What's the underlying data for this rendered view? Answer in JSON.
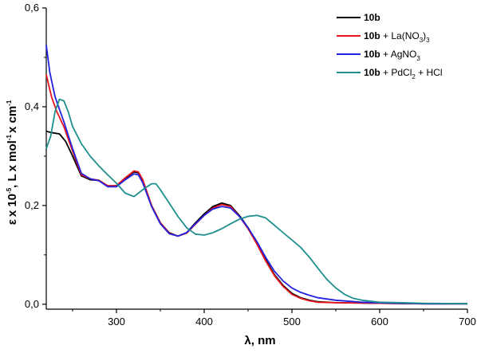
{
  "chart_data": {
    "type": "line",
    "title": "",
    "xlabel": "λ, nm",
    "ylabel": {
      "p1": "ε",
      "p2": "x 10",
      "p2_sup": "-5",
      "p3": ", L",
      "p4": "x mol",
      "p4_sup": "-1",
      "p5": "x cm",
      "p5_sup": "-1"
    },
    "xlim": [
      220,
      700
    ],
    "ylim": [
      -0.01,
      0.6
    ],
    "x_ticks": [
      300,
      400,
      500,
      600,
      700
    ],
    "y_ticks": [
      0.0,
      0.2,
      0.4,
      0.6
    ],
    "x_tick_labels": [
      "300",
      "400",
      "500",
      "600",
      "700"
    ],
    "y_tick_labels": [
      "0,0",
      "0,2",
      "0,4",
      "0,6"
    ],
    "grid": false,
    "legend_position": "top-right",
    "series": [
      {
        "name": "10b",
        "legend": {
          "bold": "10b",
          "rest": "",
          "sub": "",
          "tail": ""
        },
        "color": "#000000",
        "points": [
          [
            220,
            0.35
          ],
          [
            228,
            0.347
          ],
          [
            235,
            0.345
          ],
          [
            242,
            0.33
          ],
          [
            250,
            0.3
          ],
          [
            260,
            0.26
          ],
          [
            270,
            0.252
          ],
          [
            280,
            0.251
          ],
          [
            290,
            0.24
          ],
          [
            300,
            0.24
          ],
          [
            310,
            0.255
          ],
          [
            320,
            0.268
          ],
          [
            325,
            0.266
          ],
          [
            330,
            0.25
          ],
          [
            340,
            0.2
          ],
          [
            350,
            0.165
          ],
          [
            360,
            0.145
          ],
          [
            370,
            0.138
          ],
          [
            380,
            0.145
          ],
          [
            390,
            0.165
          ],
          [
            400,
            0.183
          ],
          [
            410,
            0.198
          ],
          [
            420,
            0.205
          ],
          [
            430,
            0.2
          ],
          [
            440,
            0.18
          ],
          [
            450,
            0.155
          ],
          [
            460,
            0.125
          ],
          [
            470,
            0.09
          ],
          [
            480,
            0.06
          ],
          [
            490,
            0.038
          ],
          [
            500,
            0.022
          ],
          [
            510,
            0.013
          ],
          [
            520,
            0.008
          ],
          [
            530,
            0.005
          ],
          [
            550,
            0.003
          ],
          [
            600,
            0.002
          ],
          [
            650,
            0.001
          ],
          [
            700,
            0.001
          ]
        ]
      },
      {
        "name": "10b + La(NO3)3",
        "legend": {
          "bold": "10b",
          "rest": " + La(NO",
          "sub": "3",
          "tail": ")",
          "sub2": "3"
        },
        "color": "#e8141c",
        "points": [
          [
            220,
            0.465
          ],
          [
            226,
            0.42
          ],
          [
            232,
            0.39
          ],
          [
            240,
            0.36
          ],
          [
            250,
            0.31
          ],
          [
            260,
            0.262
          ],
          [
            270,
            0.254
          ],
          [
            280,
            0.251
          ],
          [
            290,
            0.24
          ],
          [
            300,
            0.24
          ],
          [
            310,
            0.256
          ],
          [
            320,
            0.27
          ],
          [
            325,
            0.268
          ],
          [
            330,
            0.252
          ],
          [
            340,
            0.2
          ],
          [
            350,
            0.165
          ],
          [
            360,
            0.144
          ],
          [
            370,
            0.138
          ],
          [
            380,
            0.144
          ],
          [
            390,
            0.162
          ],
          [
            400,
            0.18
          ],
          [
            410,
            0.195
          ],
          [
            420,
            0.202
          ],
          [
            430,
            0.198
          ],
          [
            440,
            0.178
          ],
          [
            450,
            0.153
          ],
          [
            460,
            0.122
          ],
          [
            470,
            0.088
          ],
          [
            480,
            0.058
          ],
          [
            490,
            0.036
          ],
          [
            500,
            0.02
          ],
          [
            510,
            0.012
          ],
          [
            520,
            0.007
          ],
          [
            530,
            0.004
          ],
          [
            550,
            0.003
          ],
          [
            600,
            0.002
          ],
          [
            650,
            0.001
          ],
          [
            700,
            0.001
          ]
        ]
      },
      {
        "name": "10b + AgNO3",
        "legend": {
          "bold": "10b",
          "rest": " + AgNO",
          "sub": "3",
          "tail": "",
          "sub2": ""
        },
        "color": "#2222e0",
        "points": [
          [
            220,
            0.525
          ],
          [
            224,
            0.47
          ],
          [
            230,
            0.42
          ],
          [
            240,
            0.37
          ],
          [
            250,
            0.315
          ],
          [
            260,
            0.265
          ],
          [
            270,
            0.254
          ],
          [
            280,
            0.25
          ],
          [
            290,
            0.238
          ],
          [
            300,
            0.238
          ],
          [
            310,
            0.252
          ],
          [
            320,
            0.264
          ],
          [
            325,
            0.262
          ],
          [
            330,
            0.246
          ],
          [
            340,
            0.198
          ],
          [
            350,
            0.163
          ],
          [
            360,
            0.143
          ],
          [
            370,
            0.138
          ],
          [
            380,
            0.145
          ],
          [
            390,
            0.163
          ],
          [
            400,
            0.18
          ],
          [
            410,
            0.193
          ],
          [
            420,
            0.198
          ],
          [
            430,
            0.195
          ],
          [
            440,
            0.178
          ],
          [
            450,
            0.155
          ],
          [
            460,
            0.127
          ],
          [
            470,
            0.095
          ],
          [
            480,
            0.067
          ],
          [
            490,
            0.047
          ],
          [
            500,
            0.033
          ],
          [
            510,
            0.024
          ],
          [
            520,
            0.018
          ],
          [
            530,
            0.013
          ],
          [
            550,
            0.008
          ],
          [
            580,
            0.004
          ],
          [
            620,
            0.002
          ],
          [
            660,
            0.001
          ],
          [
            700,
            0.001
          ]
        ]
      },
      {
        "name": "10b + PdCl2 + HCl",
        "legend": {
          "bold": "10b",
          "rest": " + PdCl",
          "sub": "2",
          "tail": " + HCl",
          "sub2": ""
        },
        "color": "#1f8f8f",
        "points": [
          [
            220,
            0.315
          ],
          [
            225,
            0.34
          ],
          [
            230,
            0.39
          ],
          [
            235,
            0.415
          ],
          [
            240,
            0.412
          ],
          [
            245,
            0.39
          ],
          [
            250,
            0.36
          ],
          [
            260,
            0.325
          ],
          [
            270,
            0.3
          ],
          [
            280,
            0.28
          ],
          [
            290,
            0.262
          ],
          [
            300,
            0.245
          ],
          [
            310,
            0.225
          ],
          [
            320,
            0.218
          ],
          [
            330,
            0.232
          ],
          [
            340,
            0.244
          ],
          [
            345,
            0.244
          ],
          [
            350,
            0.232
          ],
          [
            360,
            0.205
          ],
          [
            370,
            0.178
          ],
          [
            380,
            0.155
          ],
          [
            390,
            0.142
          ],
          [
            400,
            0.14
          ],
          [
            410,
            0.145
          ],
          [
            420,
            0.153
          ],
          [
            430,
            0.163
          ],
          [
            440,
            0.172
          ],
          [
            450,
            0.178
          ],
          [
            460,
            0.18
          ],
          [
            470,
            0.175
          ],
          [
            480,
            0.16
          ],
          [
            490,
            0.145
          ],
          [
            500,
            0.13
          ],
          [
            510,
            0.115
          ],
          [
            520,
            0.095
          ],
          [
            530,
            0.072
          ],
          [
            540,
            0.05
          ],
          [
            550,
            0.033
          ],
          [
            560,
            0.02
          ],
          [
            570,
            0.012
          ],
          [
            580,
            0.008
          ],
          [
            600,
            0.004
          ],
          [
            650,
            0.002
          ],
          [
            700,
            0.001
          ]
        ]
      }
    ]
  }
}
